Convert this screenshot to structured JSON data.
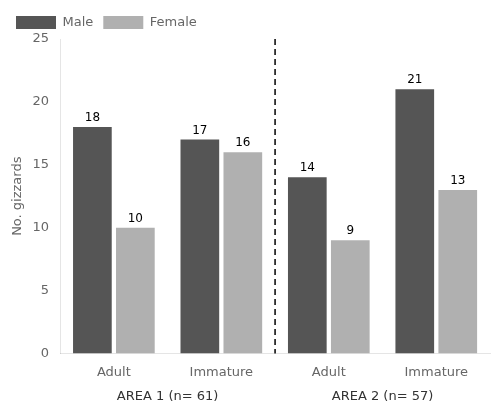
{
  "chart_data": {
    "type": "bar",
    "categories": [
      "Adult",
      "Immature",
      "Adult",
      "Immature"
    ],
    "groups": [
      "AREA 1 (n= 61)",
      "AREA 1 (n= 61)",
      "AREA 2 (n= 57)",
      "AREA 2 (n= 57)"
    ],
    "series": [
      {
        "name": "Male",
        "color": "#555555",
        "values": [
          18,
          17,
          14,
          21
        ]
      },
      {
        "name": "Female",
        "color": "#b0b0b0",
        "values": [
          10,
          16,
          9,
          13
        ]
      }
    ],
    "y_label": "No. gizzards",
    "ylim": [
      0,
      25
    ],
    "yticks": [
      0,
      5,
      10,
      15,
      20,
      25
    ],
    "grid": false,
    "legend": "upper left",
    "data_labels": true
  }
}
